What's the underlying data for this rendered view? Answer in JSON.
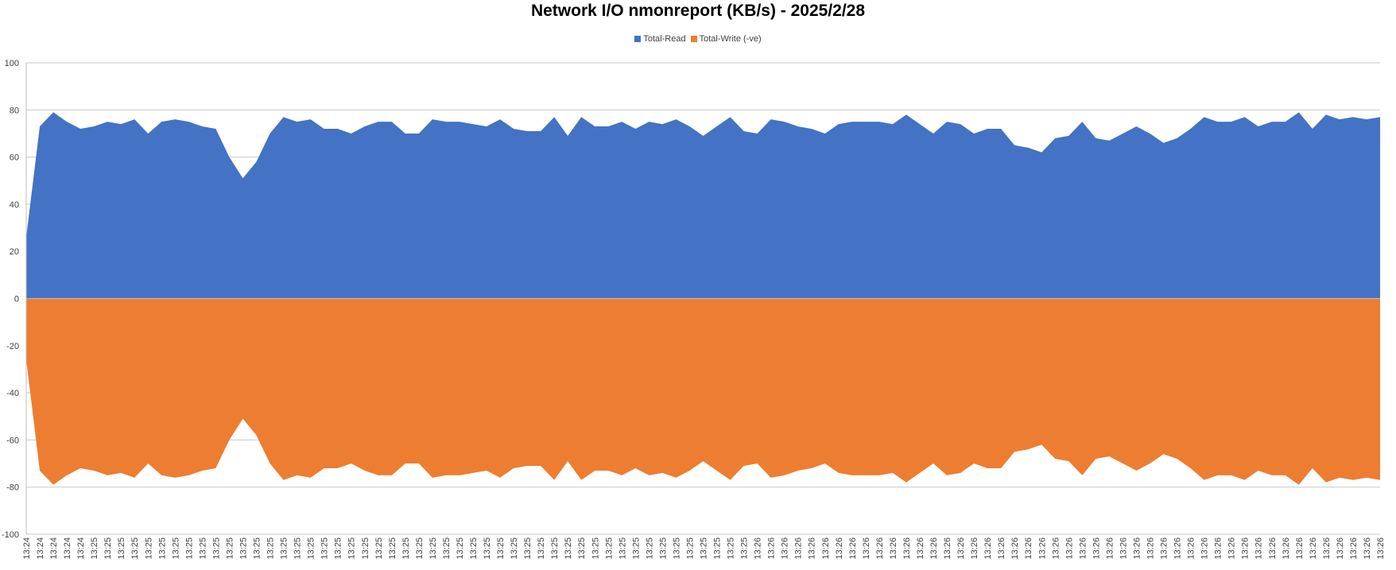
{
  "chart_data": {
    "type": "area",
    "title": "Network I/O nmonreport (KB/s) - 2025/2/28",
    "xlabel": "",
    "ylabel": "",
    "ylim": [
      -100,
      100
    ],
    "yticks": [
      100,
      80,
      60,
      40,
      20,
      0,
      -20,
      -40,
      -60,
      -80,
      -100
    ],
    "grid": true,
    "legend_position": "top",
    "categories": [
      "13:24",
      "13:24",
      "13:24",
      "13:24",
      "13:24",
      "13:25",
      "13:25",
      "13:25",
      "13:25",
      "13:25",
      "13:25",
      "13:25",
      "13:25",
      "13:25",
      "13:25",
      "13:25",
      "13:25",
      "13:25",
      "13:25",
      "13:25",
      "13:25",
      "13:25",
      "13:25",
      "13:25",
      "13:25",
      "13:25",
      "13:25",
      "13:25",
      "13:25",
      "13:25",
      "13:25",
      "13:25",
      "13:25",
      "13:25",
      "13:25",
      "13:25",
      "13:25",
      "13:25",
      "13:25",
      "13:25",
      "13:25",
      "13:25",
      "13:25",
      "13:25",
      "13:25",
      "13:25",
      "13:25",
      "13:25",
      "13:25",
      "13:25",
      "13:25",
      "13:25",
      "13:25",
      "13:25",
      "13:26",
      "13:26",
      "13:26",
      "13:26",
      "13:26",
      "13:26",
      "13:26",
      "13:26",
      "13:26",
      "13:26",
      "13:26",
      "13:26",
      "13:26",
      "13:26",
      "13:26",
      "13:26",
      "13:26",
      "13:26",
      "13:26",
      "13:26",
      "13:26",
      "13:26",
      "13:26",
      "13:26",
      "13:26",
      "13:26",
      "13:26",
      "13:26",
      "13:26",
      "13:26",
      "13:26",
      "13:26",
      "13:26",
      "13:26",
      "13:26",
      "13:26",
      "13:26",
      "13:26",
      "13:26",
      "13:26",
      "13:26",
      "13:26",
      "13:26",
      "13:26",
      "13:26",
      "13:26",
      "13:26"
    ],
    "series": [
      {
        "name": "Total-Read",
        "color": "#4472C4",
        "values": [
          26,
          73,
          79,
          75,
          72,
          73,
          75,
          74,
          76,
          70,
          75,
          76,
          75,
          73,
          72,
          60,
          51,
          58,
          70,
          77,
          75,
          76,
          72,
          72,
          70,
          73,
          75,
          75,
          70,
          70,
          76,
          75,
          75,
          74,
          73,
          76,
          72,
          71,
          71,
          77,
          69,
          77,
          73,
          73,
          75,
          72,
          75,
          74,
          76,
          73,
          69,
          73,
          77,
          71,
          70,
          76,
          75,
          73,
          72,
          70,
          74,
          75,
          75,
          75,
          74,
          78,
          74,
          70,
          75,
          74,
          70,
          72,
          72,
          65,
          64,
          62,
          68,
          69,
          75,
          68,
          67,
          70,
          73,
          70,
          66,
          68,
          72,
          77,
          75,
          75,
          77,
          73,
          75,
          75,
          79,
          72,
          78,
          76,
          77,
          76,
          77
        ]
      },
      {
        "name": "Total-Write (-ve)",
        "color": "#ED7D31",
        "values": [
          -26,
          -73,
          -79,
          -75,
          -72,
          -73,
          -75,
          -74,
          -76,
          -70,
          -75,
          -76,
          -75,
          -73,
          -72,
          -60,
          -51,
          -58,
          -70,
          -77,
          -75,
          -76,
          -72,
          -72,
          -70,
          -73,
          -75,
          -75,
          -70,
          -70,
          -76,
          -75,
          -75,
          -74,
          -73,
          -76,
          -72,
          -71,
          -71,
          -77,
          -69,
          -77,
          -73,
          -73,
          -75,
          -72,
          -75,
          -74,
          -76,
          -73,
          -69,
          -73,
          -77,
          -71,
          -70,
          -76,
          -75,
          -73,
          -72,
          -70,
          -74,
          -75,
          -75,
          -75,
          -74,
          -78,
          -74,
          -70,
          -75,
          -74,
          -70,
          -72,
          -72,
          -65,
          -64,
          -62,
          -68,
          -69,
          -75,
          -68,
          -67,
          -70,
          -73,
          -70,
          -66,
          -68,
          -72,
          -77,
          -75,
          -75,
          -77,
          -73,
          -75,
          -75,
          -79,
          -72,
          -78,
          -76,
          -77,
          -76,
          -77
        ]
      }
    ]
  }
}
